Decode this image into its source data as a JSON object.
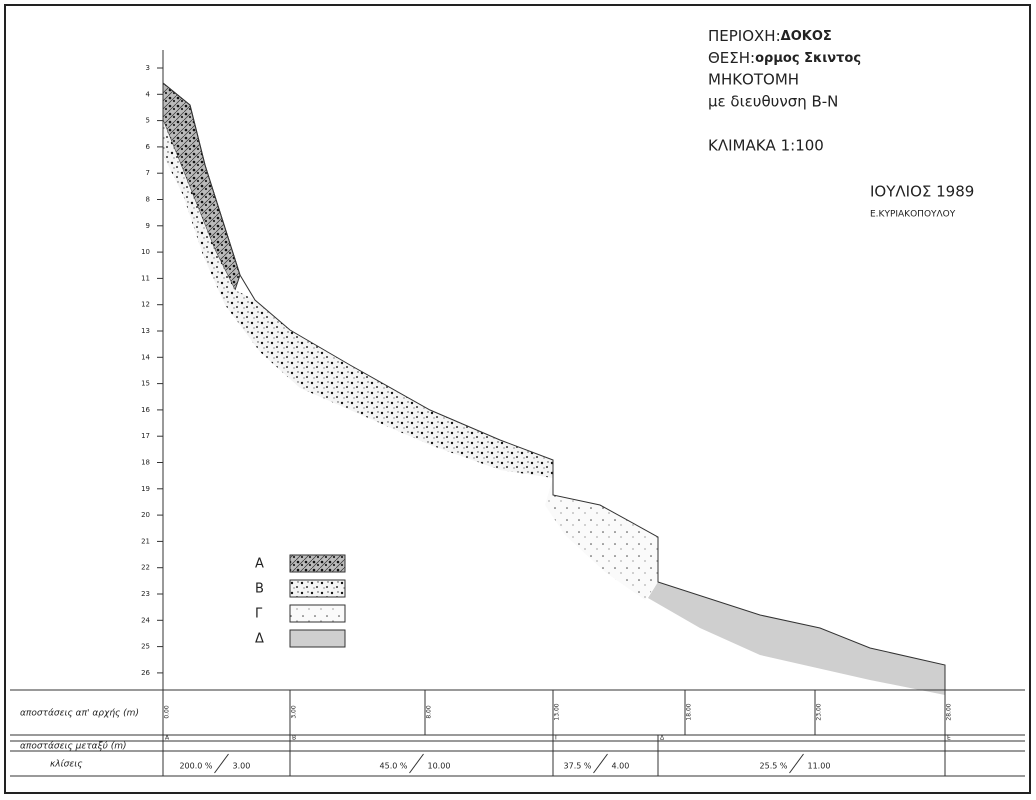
{
  "title_block": {
    "area": "ΠΕΡΙΟΧΗ:",
    "area_name": "ΔΟΚΟΣ",
    "site": "ΘΕΣΗ:",
    "site_name": "ορμος Σκιντος",
    "drawing": "ΜΗΚΟΤΟΜΗ",
    "direction": "με διευθυνση Β-Ν",
    "scale": "ΚΛΙΜΑΚΑ 1:100",
    "date": "ΙΟΥΛΙΟΣ 1989",
    "author": "Ε.ΚΥΡΙΑΚΟΠΟΥΛΟΥ"
  },
  "depth_axis": {
    "labels": [
      3,
      4,
      5,
      6,
      7,
      8,
      9,
      10,
      11,
      12,
      13,
      14,
      15,
      16,
      17,
      18,
      19,
      20,
      21,
      22,
      23,
      24,
      25,
      26
    ]
  },
  "legend": [
    {
      "label": "Α"
    },
    {
      "label": "Β"
    },
    {
      "label": "Γ"
    },
    {
      "label": "Δ"
    }
  ],
  "table": {
    "row_labels": [
      "αποστάσεις απ' αρχής (m)",
      "αποστάσεις μεταξύ (m)",
      "κλίσεις"
    ],
    "distances": [
      "0.00",
      "3.00",
      "8.00",
      "13.00",
      "18.00",
      "23.00",
      "28.00"
    ],
    "stations": [
      "Α",
      "Β",
      "Γ",
      "Δ",
      "Ε"
    ],
    "slopes": [
      {
        "slope": "200.0 %",
        "length": "3.00"
      },
      {
        "slope": "45.0 %",
        "length": "10.00"
      },
      {
        "slope": "37.5 %",
        "length": "4.00"
      },
      {
        "slope": "25.5 %",
        "length": "11.00"
      }
    ]
  }
}
